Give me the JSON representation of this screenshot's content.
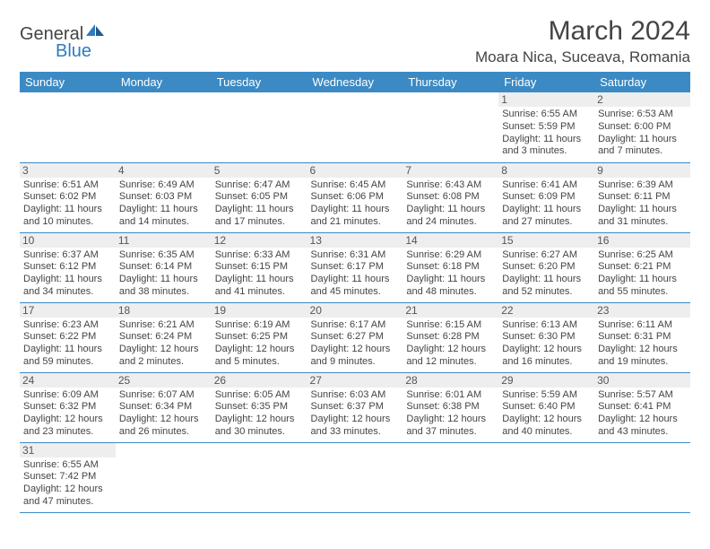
{
  "brand": {
    "name1": "General",
    "name2": "Blue"
  },
  "title": "March 2024",
  "location": "Moara Nica, Suceava, Romania",
  "colors": {
    "header_bg": "#3b8ac4",
    "header_fg": "#ffffff",
    "daynum_bg": "#eeeeee",
    "border": "#3b8ac4",
    "brand_blue": "#2f7bbf",
    "text": "#444444"
  },
  "weekdays": [
    "Sunday",
    "Monday",
    "Tuesday",
    "Wednesday",
    "Thursday",
    "Friday",
    "Saturday"
  ],
  "weeks": [
    [
      null,
      null,
      null,
      null,
      null,
      {
        "d": "1",
        "sr": "Sunrise: 6:55 AM",
        "ss": "Sunset: 5:59 PM",
        "dl1": "Daylight: 11 hours",
        "dl2": "and 3 minutes."
      },
      {
        "d": "2",
        "sr": "Sunrise: 6:53 AM",
        "ss": "Sunset: 6:00 PM",
        "dl1": "Daylight: 11 hours",
        "dl2": "and 7 minutes."
      }
    ],
    [
      {
        "d": "3",
        "sr": "Sunrise: 6:51 AM",
        "ss": "Sunset: 6:02 PM",
        "dl1": "Daylight: 11 hours",
        "dl2": "and 10 minutes."
      },
      {
        "d": "4",
        "sr": "Sunrise: 6:49 AM",
        "ss": "Sunset: 6:03 PM",
        "dl1": "Daylight: 11 hours",
        "dl2": "and 14 minutes."
      },
      {
        "d": "5",
        "sr": "Sunrise: 6:47 AM",
        "ss": "Sunset: 6:05 PM",
        "dl1": "Daylight: 11 hours",
        "dl2": "and 17 minutes."
      },
      {
        "d": "6",
        "sr": "Sunrise: 6:45 AM",
        "ss": "Sunset: 6:06 PM",
        "dl1": "Daylight: 11 hours",
        "dl2": "and 21 minutes."
      },
      {
        "d": "7",
        "sr": "Sunrise: 6:43 AM",
        "ss": "Sunset: 6:08 PM",
        "dl1": "Daylight: 11 hours",
        "dl2": "and 24 minutes."
      },
      {
        "d": "8",
        "sr": "Sunrise: 6:41 AM",
        "ss": "Sunset: 6:09 PM",
        "dl1": "Daylight: 11 hours",
        "dl2": "and 27 minutes."
      },
      {
        "d": "9",
        "sr": "Sunrise: 6:39 AM",
        "ss": "Sunset: 6:11 PM",
        "dl1": "Daylight: 11 hours",
        "dl2": "and 31 minutes."
      }
    ],
    [
      {
        "d": "10",
        "sr": "Sunrise: 6:37 AM",
        "ss": "Sunset: 6:12 PM",
        "dl1": "Daylight: 11 hours",
        "dl2": "and 34 minutes."
      },
      {
        "d": "11",
        "sr": "Sunrise: 6:35 AM",
        "ss": "Sunset: 6:14 PM",
        "dl1": "Daylight: 11 hours",
        "dl2": "and 38 minutes."
      },
      {
        "d": "12",
        "sr": "Sunrise: 6:33 AM",
        "ss": "Sunset: 6:15 PM",
        "dl1": "Daylight: 11 hours",
        "dl2": "and 41 minutes."
      },
      {
        "d": "13",
        "sr": "Sunrise: 6:31 AM",
        "ss": "Sunset: 6:17 PM",
        "dl1": "Daylight: 11 hours",
        "dl2": "and 45 minutes."
      },
      {
        "d": "14",
        "sr": "Sunrise: 6:29 AM",
        "ss": "Sunset: 6:18 PM",
        "dl1": "Daylight: 11 hours",
        "dl2": "and 48 minutes."
      },
      {
        "d": "15",
        "sr": "Sunrise: 6:27 AM",
        "ss": "Sunset: 6:20 PM",
        "dl1": "Daylight: 11 hours",
        "dl2": "and 52 minutes."
      },
      {
        "d": "16",
        "sr": "Sunrise: 6:25 AM",
        "ss": "Sunset: 6:21 PM",
        "dl1": "Daylight: 11 hours",
        "dl2": "and 55 minutes."
      }
    ],
    [
      {
        "d": "17",
        "sr": "Sunrise: 6:23 AM",
        "ss": "Sunset: 6:22 PM",
        "dl1": "Daylight: 11 hours",
        "dl2": "and 59 minutes."
      },
      {
        "d": "18",
        "sr": "Sunrise: 6:21 AM",
        "ss": "Sunset: 6:24 PM",
        "dl1": "Daylight: 12 hours",
        "dl2": "and 2 minutes."
      },
      {
        "d": "19",
        "sr": "Sunrise: 6:19 AM",
        "ss": "Sunset: 6:25 PM",
        "dl1": "Daylight: 12 hours",
        "dl2": "and 5 minutes."
      },
      {
        "d": "20",
        "sr": "Sunrise: 6:17 AM",
        "ss": "Sunset: 6:27 PM",
        "dl1": "Daylight: 12 hours",
        "dl2": "and 9 minutes."
      },
      {
        "d": "21",
        "sr": "Sunrise: 6:15 AM",
        "ss": "Sunset: 6:28 PM",
        "dl1": "Daylight: 12 hours",
        "dl2": "and 12 minutes."
      },
      {
        "d": "22",
        "sr": "Sunrise: 6:13 AM",
        "ss": "Sunset: 6:30 PM",
        "dl1": "Daylight: 12 hours",
        "dl2": "and 16 minutes."
      },
      {
        "d": "23",
        "sr": "Sunrise: 6:11 AM",
        "ss": "Sunset: 6:31 PM",
        "dl1": "Daylight: 12 hours",
        "dl2": "and 19 minutes."
      }
    ],
    [
      {
        "d": "24",
        "sr": "Sunrise: 6:09 AM",
        "ss": "Sunset: 6:32 PM",
        "dl1": "Daylight: 12 hours",
        "dl2": "and 23 minutes."
      },
      {
        "d": "25",
        "sr": "Sunrise: 6:07 AM",
        "ss": "Sunset: 6:34 PM",
        "dl1": "Daylight: 12 hours",
        "dl2": "and 26 minutes."
      },
      {
        "d": "26",
        "sr": "Sunrise: 6:05 AM",
        "ss": "Sunset: 6:35 PM",
        "dl1": "Daylight: 12 hours",
        "dl2": "and 30 minutes."
      },
      {
        "d": "27",
        "sr": "Sunrise: 6:03 AM",
        "ss": "Sunset: 6:37 PM",
        "dl1": "Daylight: 12 hours",
        "dl2": "and 33 minutes."
      },
      {
        "d": "28",
        "sr": "Sunrise: 6:01 AM",
        "ss": "Sunset: 6:38 PM",
        "dl1": "Daylight: 12 hours",
        "dl2": "and 37 minutes."
      },
      {
        "d": "29",
        "sr": "Sunrise: 5:59 AM",
        "ss": "Sunset: 6:40 PM",
        "dl1": "Daylight: 12 hours",
        "dl2": "and 40 minutes."
      },
      {
        "d": "30",
        "sr": "Sunrise: 5:57 AM",
        "ss": "Sunset: 6:41 PM",
        "dl1": "Daylight: 12 hours",
        "dl2": "and 43 minutes."
      }
    ],
    [
      {
        "d": "31",
        "sr": "Sunrise: 6:55 AM",
        "ss": "Sunset: 7:42 PM",
        "dl1": "Daylight: 12 hours",
        "dl2": "and 47 minutes."
      },
      null,
      null,
      null,
      null,
      null,
      null
    ]
  ]
}
